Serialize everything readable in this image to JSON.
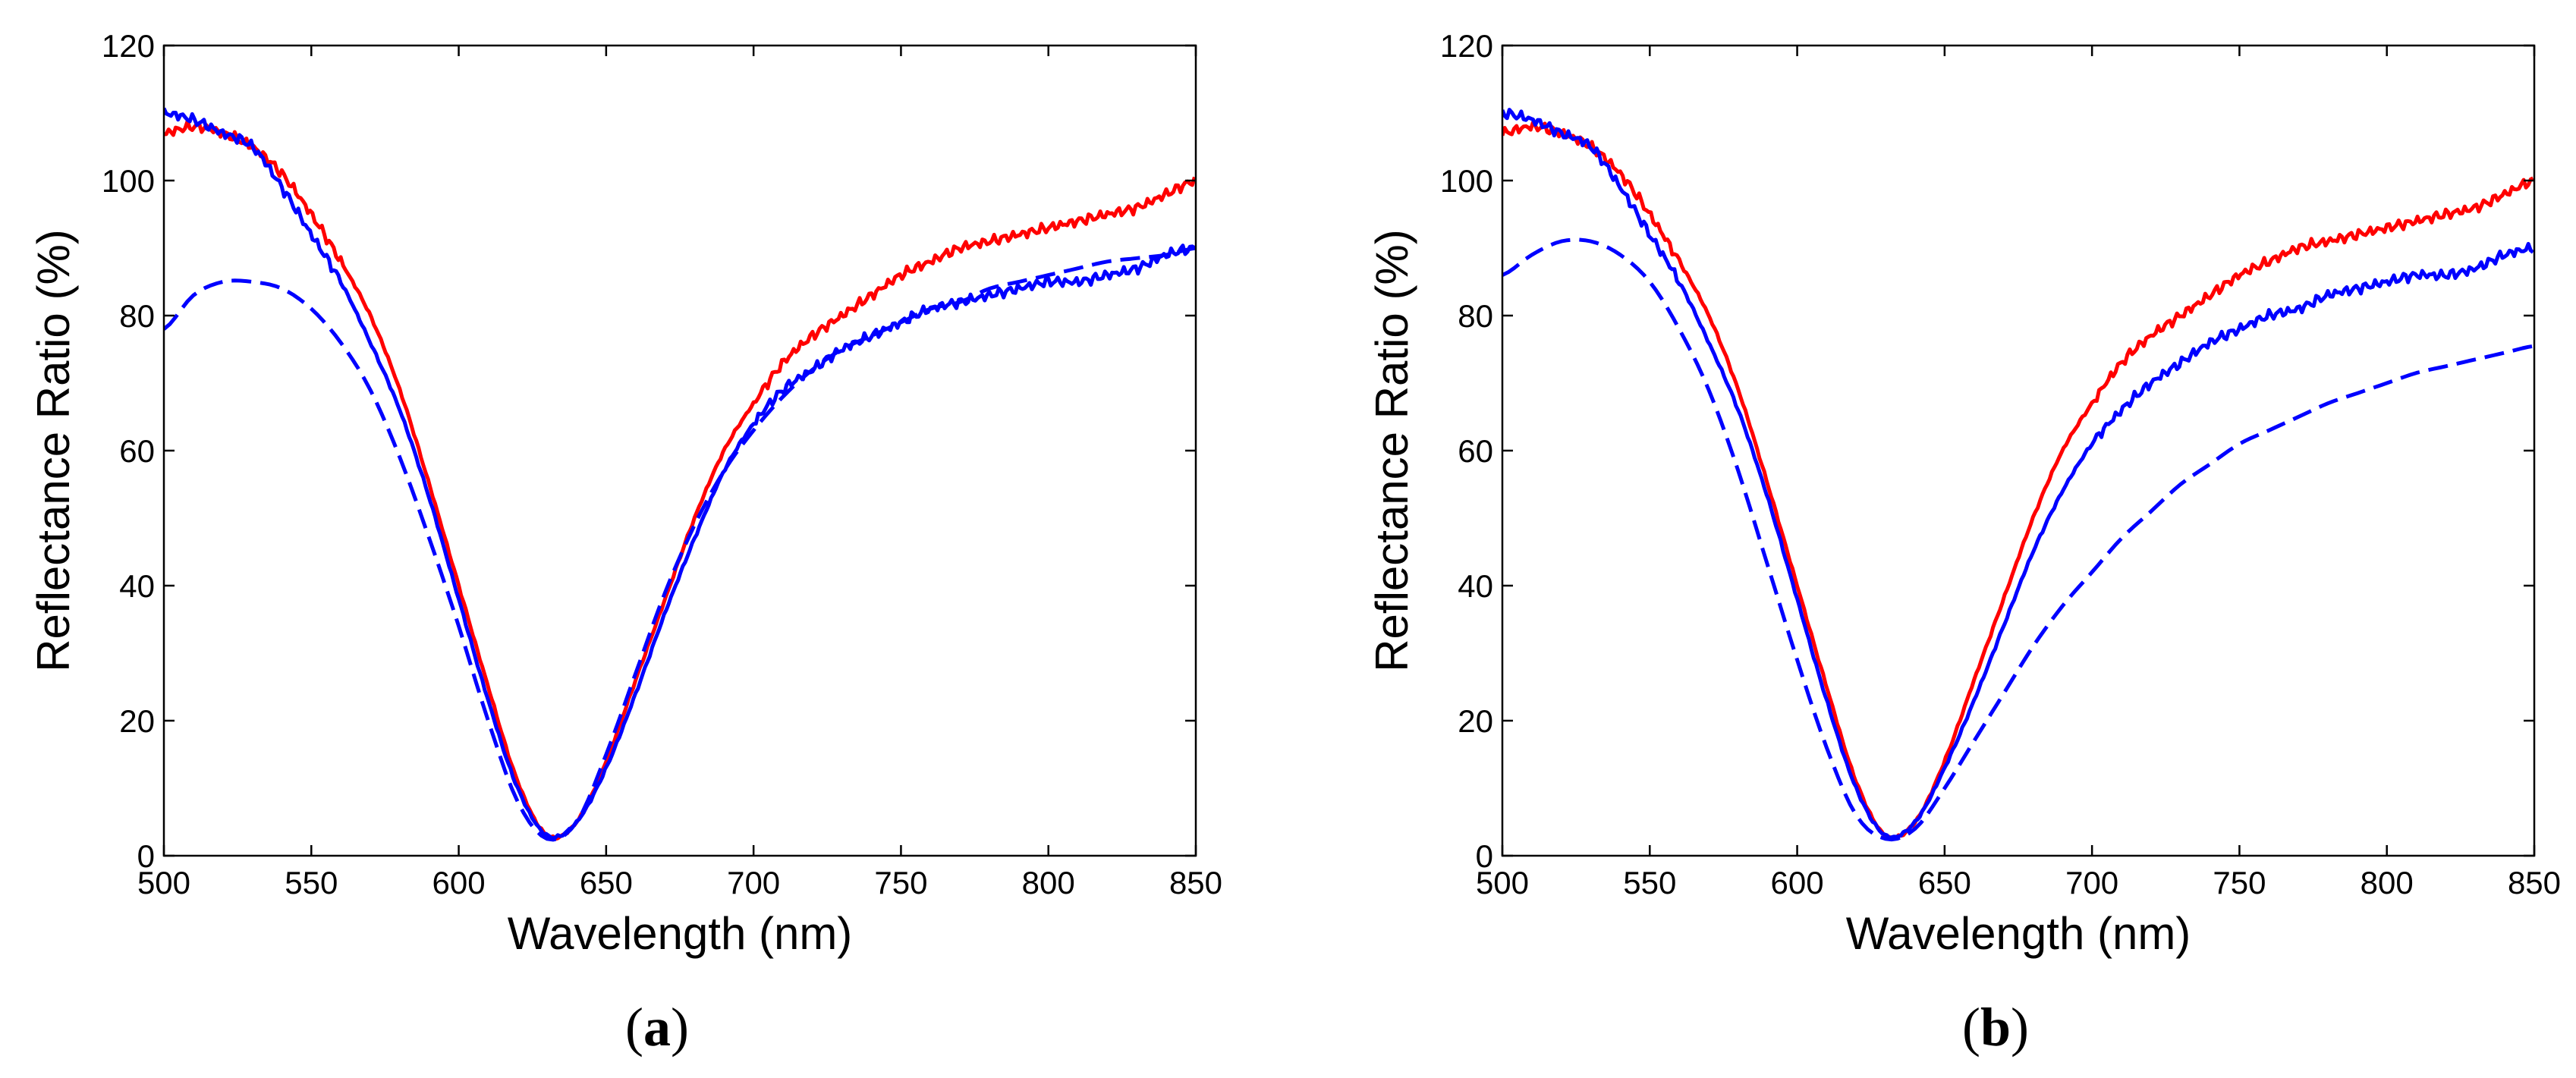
{
  "chart_data": [
    {
      "type": "line",
      "panel_label": "a",
      "xlabel": "Wavelength (nm)",
      "ylabel": "Reflectance Ratio (%)",
      "xlim": [
        500,
        850
      ],
      "ylim": [
        0,
        120
      ],
      "xticks": [
        500,
        550,
        600,
        650,
        700,
        750,
        800,
        850
      ],
      "yticks": [
        0,
        20,
        40,
        60,
        80,
        100,
        120
      ],
      "grid": false,
      "series": [
        {
          "color": "#ff0000",
          "style": "solid",
          "noisy": true,
          "x": [
            500,
            510,
            520,
            530,
            540,
            550,
            560,
            570,
            580,
            590,
            600,
            610,
            620,
            630,
            640,
            650,
            660,
            670,
            680,
            690,
            700,
            710,
            720,
            730,
            740,
            750,
            760,
            770,
            780,
            790,
            800,
            810,
            820,
            830,
            840,
            850
          ],
          "y": [
            107,
            108,
            107,
            105,
            101,
            95,
            88,
            80,
            69,
            55,
            40,
            25,
            11,
            3,
            5,
            14,
            26,
            38,
            50,
            60,
            67,
            73,
            77,
            80,
            83,
            86,
            88,
            90,
            91,
            92,
            93,
            94,
            95,
            96,
            98,
            100
          ]
        },
        {
          "color": "#0000ff",
          "style": "solid",
          "noisy": true,
          "x": [
            500,
            510,
            520,
            530,
            540,
            550,
            560,
            570,
            580,
            590,
            600,
            610,
            620,
            630,
            640,
            650,
            660,
            670,
            680,
            690,
            700,
            710,
            720,
            730,
            740,
            750,
            760,
            770,
            780,
            790,
            800,
            810,
            820,
            830,
            840,
            850
          ],
          "y": [
            110,
            109,
            107,
            105,
            99,
            92,
            85,
            76,
            66,
            53,
            38,
            23,
            10,
            3,
            5,
            13,
            24,
            36,
            47,
            57,
            64,
            69,
            72,
            75,
            77,
            79,
            81,
            82,
            83,
            84,
            85,
            85,
            86,
            87,
            89,
            90
          ]
        },
        {
          "color": "#0000ff",
          "style": "dashed",
          "noisy": false,
          "x": [
            500,
            510,
            520,
            530,
            540,
            550,
            560,
            570,
            580,
            590,
            600,
            610,
            620,
            630,
            640,
            650,
            660,
            670,
            680,
            690,
            700,
            710,
            720,
            730,
            740,
            750,
            760,
            770,
            780,
            790,
            800,
            810,
            820,
            830,
            840,
            850
          ],
          "y": [
            78,
            83,
            85,
            85,
            84,
            81,
            76,
            69,
            59,
            47,
            34,
            20,
            8,
            2.5,
            5,
            15,
            27,
            39,
            49,
            57,
            63,
            68,
            72,
            75,
            77,
            79,
            81,
            82,
            84,
            85,
            86,
            87,
            88,
            88.5,
            89,
            90
          ]
        }
      ]
    },
    {
      "type": "line",
      "panel_label": "b",
      "xlabel": "Wavelength (nm)",
      "ylabel": "Reflectance Ratio (%)",
      "xlim": [
        500,
        850
      ],
      "ylim": [
        0,
        120
      ],
      "xticks": [
        500,
        550,
        600,
        650,
        700,
        750,
        800,
        850
      ],
      "yticks": [
        0,
        20,
        40,
        60,
        80,
        100,
        120
      ],
      "grid": false,
      "series": [
        {
          "color": "#ff0000",
          "style": "solid",
          "noisy": true,
          "x": [
            500,
            510,
            520,
            530,
            540,
            550,
            560,
            570,
            580,
            590,
            600,
            610,
            620,
            630,
            640,
            650,
            660,
            670,
            680,
            690,
            700,
            710,
            720,
            730,
            740,
            750,
            760,
            770,
            780,
            790,
            800,
            810,
            820,
            830,
            840,
            850
          ],
          "y": [
            107,
            108,
            107,
            105,
            101,
            95,
            88,
            80,
            69,
            55,
            40,
            25,
            11,
            3,
            5,
            14,
            26,
            38,
            50,
            60,
            67,
            73,
            77,
            80,
            83,
            86,
            88,
            90,
            91,
            92,
            93,
            94,
            95,
            96,
            98,
            100
          ]
        },
        {
          "color": "#0000ff",
          "style": "solid",
          "noisy": true,
          "x": [
            500,
            510,
            520,
            530,
            540,
            550,
            560,
            570,
            580,
            590,
            600,
            610,
            620,
            630,
            640,
            650,
            660,
            670,
            680,
            690,
            700,
            710,
            720,
            730,
            740,
            750,
            760,
            770,
            780,
            790,
            800,
            810,
            820,
            830,
            840,
            850
          ],
          "y": [
            110,
            109,
            107,
            105,
            99,
            92,
            85,
            76,
            66,
            53,
            38,
            23,
            10,
            3,
            5,
            13,
            23,
            34,
            45,
            54,
            61,
            66,
            70,
            73,
            76,
            78,
            80,
            81,
            83,
            84,
            85,
            86,
            86,
            87,
            89,
            90
          ]
        },
        {
          "color": "#0000ff",
          "style": "dashed",
          "noisy": false,
          "x": [
            500,
            510,
            520,
            530,
            540,
            550,
            560,
            570,
            580,
            590,
            600,
            610,
            620,
            630,
            640,
            650,
            660,
            670,
            680,
            690,
            700,
            710,
            720,
            730,
            740,
            750,
            760,
            770,
            780,
            790,
            800,
            810,
            820,
            830,
            840,
            850
          ],
          "y": [
            86,
            89,
            91,
            91,
            89,
            85,
            78,
            69,
            57,
            43,
            29,
            16,
            6,
            2.5,
            4,
            10,
            17,
            24,
            31,
            37,
            42,
            47,
            51,
            55,
            58,
            61,
            63,
            65,
            67,
            68.5,
            70,
            71.5,
            72.5,
            73.5,
            74.5,
            75.5
          ]
        }
      ]
    }
  ]
}
